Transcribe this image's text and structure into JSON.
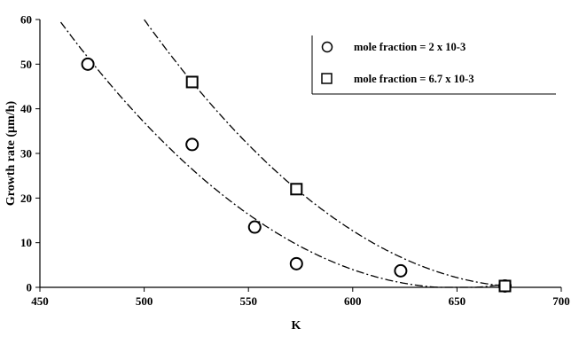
{
  "chart_data": {
    "type": "scatter",
    "xlabel": "K",
    "ylabel": "Growth rate (µm/h)",
    "xlim": [
      450,
      700
    ],
    "ylim": [
      0,
      60
    ],
    "xticks": [
      450,
      500,
      550,
      600,
      650,
      700
    ],
    "yticks": [
      0,
      10,
      20,
      30,
      40,
      50,
      60
    ],
    "grid": false,
    "legend_position": "top-right",
    "series": [
      {
        "name": "mole fraction = 2 x 10-3",
        "marker": "circle",
        "x": [
          473,
          523,
          553,
          573,
          623,
          673
        ],
        "y": [
          50,
          32,
          13.5,
          5.3,
          3.7,
          0.3
        ],
        "trendline_style": "dash-dot"
      },
      {
        "name": "mole fraction = 6.7 x 10-3",
        "marker": "square",
        "x": [
          523,
          573,
          673
        ],
        "y": [
          46,
          22,
          0.3
        ],
        "trendline_style": "dash-dot"
      }
    ]
  }
}
